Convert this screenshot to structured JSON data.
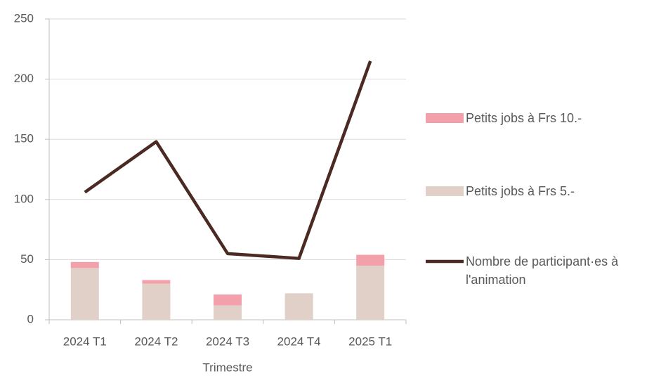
{
  "chart_data": {
    "type": "bar",
    "stacked": true,
    "x_label": "Trimestre",
    "categories": [
      "2024 T1",
      "2024 T2",
      "2024 T3",
      "2024 T4",
      "2025 T1"
    ],
    "series": [
      {
        "name": "Petits jobs à Frs 5.-",
        "type": "bar",
        "color": "#e0d0c8",
        "values": [
          43,
          30,
          12,
          22,
          45
        ]
      },
      {
        "name": "Petits jobs à Frs 10.-",
        "type": "bar",
        "color": "#f4a0ab",
        "values": [
          5,
          3,
          9,
          0,
          9
        ]
      },
      {
        "name": "Nombre de participant·es à l'animation",
        "type": "line",
        "color": "#4a2a22",
        "values": [
          106,
          148,
          55,
          51,
          215
        ]
      }
    ],
    "legend_order": [
      1,
      0,
      2
    ],
    "ylim": [
      0,
      250
    ],
    "yticks": [
      0,
      50,
      100,
      150,
      200,
      250
    ],
    "grid": true
  }
}
